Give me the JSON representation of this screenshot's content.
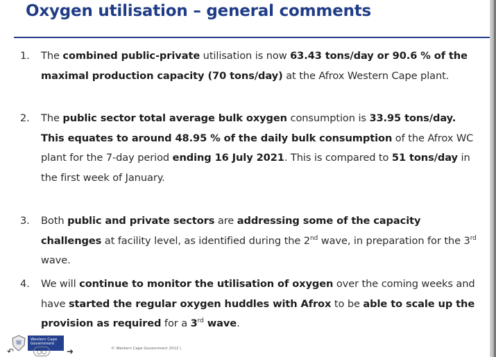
{
  "slide": {
    "title": "Oxygen utilisation – general comments"
  },
  "items": [
    {
      "number": "1.",
      "parts": [
        "The ",
        "combined public-private",
        " utilisation is now ",
        "63.43 tons/day or 90.6 % of the maximal production capacity (70 tons/day)",
        " at the Afrox Western Cape plant."
      ]
    },
    {
      "number": "2.",
      "parts": [
        "The ",
        "public sector total average bulk oxygen",
        " consumption is ",
        "33.95 tons/day. This equates to around 48.95 % of the daily bulk consumption",
        " of the Afrox WC plant for the 7-day period ",
        "ending 16 July 2021",
        ". This is compared to ",
        "51 tons/day",
        " in the first week of January."
      ]
    },
    {
      "number": "3.",
      "parts": [
        "Both ",
        "public and private sectors",
        " are ",
        "addressing some of the capacity challenges",
        " at facility level, as identified during the 2",
        "nd",
        " wave, in preparation for the 3",
        "rd",
        " wave."
      ]
    },
    {
      "number": "4.",
      "parts": [
        "We will ",
        "continue to monitor the utilisation of oxygen",
        " over the coming weeks and have ",
        "started the regular oxygen huddles with Afrox",
        " to be ",
        "able to scale up the provision as required",
        " for a ",
        "3",
        "rd",
        " wave",
        "."
      ]
    }
  ],
  "footer": {
    "logo_text": "Western Cape Government",
    "copyright": "© Western Cape Government 2012 |",
    "nav_prev_glyph": "↶",
    "nav_mid_glyph": "○○",
    "nav_next_glyph": "➜",
    "logo_color": "#24408e",
    "title_color": "#1f3c86"
  }
}
